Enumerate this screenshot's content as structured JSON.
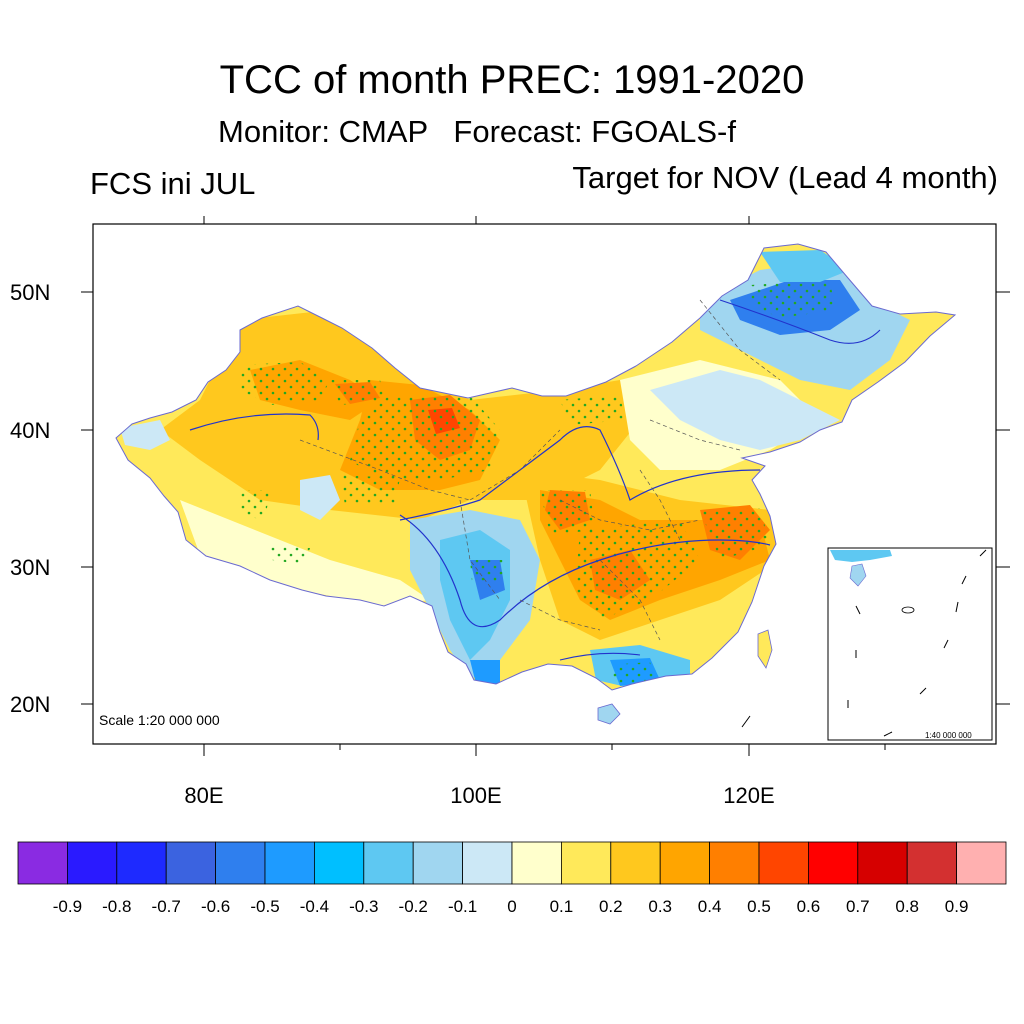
{
  "title": "TCC of month PREC: 1991-2020",
  "subtitle": "Monitor: CMAP   Forecast: FGOALS-f",
  "left_label": "FCS ini JUL",
  "right_label": "Target for NOV (Lead 4 month)",
  "map": {
    "scale_text": "Scale 1:20 000 000",
    "inset_scale_text": "1:40 000 000",
    "lat_labels": [
      "50N",
      "40N",
      "30N",
      "20N"
    ],
    "lon_labels": [
      "80E",
      "100E",
      "120E"
    ]
  },
  "colorbar": {
    "colors": [
      "#8a2be2",
      "#2a1aff",
      "#1e2aff",
      "#3b63e0",
      "#2f7fee",
      "#1e9bff",
      "#00bfff",
      "#5ec8f2",
      "#a0d6f0",
      "#cce8f6",
      "#ffffcc",
      "#ffe95a",
      "#ffc81e",
      "#ffa500",
      "#ff7f00",
      "#ff4500",
      "#ff0000",
      "#d60000",
      "#d33030",
      "#ffb0b0"
    ],
    "labels": [
      "-0.9",
      "-0.8",
      "-0.7",
      "-0.6",
      "-0.5",
      "-0.4",
      "-0.3",
      "-0.2",
      "-0.1",
      "0",
      "0.1",
      "0.2",
      "0.3",
      "0.4",
      "0.5",
      "0.6",
      "0.7",
      "0.8",
      "0.9"
    ]
  }
}
